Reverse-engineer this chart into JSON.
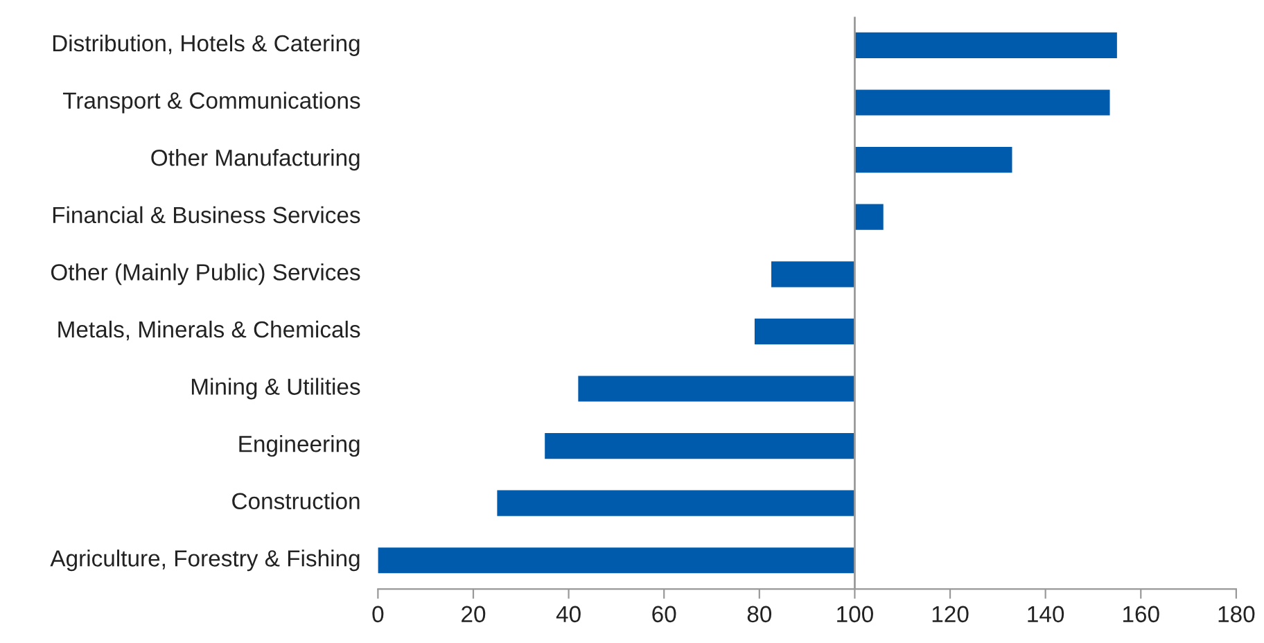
{
  "chart_data": {
    "type": "bar",
    "orientation": "horizontal",
    "categories": [
      "Distribution, Hotels & Catering",
      "Transport & Communications",
      "Other Manufacturing",
      "Financial & Business Services",
      "Other (Mainly Public) Services",
      "Metals, Minerals & Chemicals",
      "Mining & Utilities",
      "Engineering",
      "Construction",
      "Agriculture, Forestry & Fishing"
    ],
    "base": [
      100,
      100,
      100,
      100,
      100,
      100,
      100,
      100,
      100,
      100
    ],
    "values": [
      55,
      53.5,
      33,
      6,
      -17.5,
      -21,
      -58,
      -65,
      -75,
      -100
    ],
    "color": "#005bac",
    "xlim": [
      0,
      180
    ],
    "xticks": [
      0,
      20,
      40,
      60,
      80,
      100,
      120,
      140,
      160,
      180
    ],
    "ref_lines": [
      {
        "axis": "x",
        "value": 100,
        "color": "#999999"
      }
    ],
    "grid": false,
    "legend": false
  }
}
